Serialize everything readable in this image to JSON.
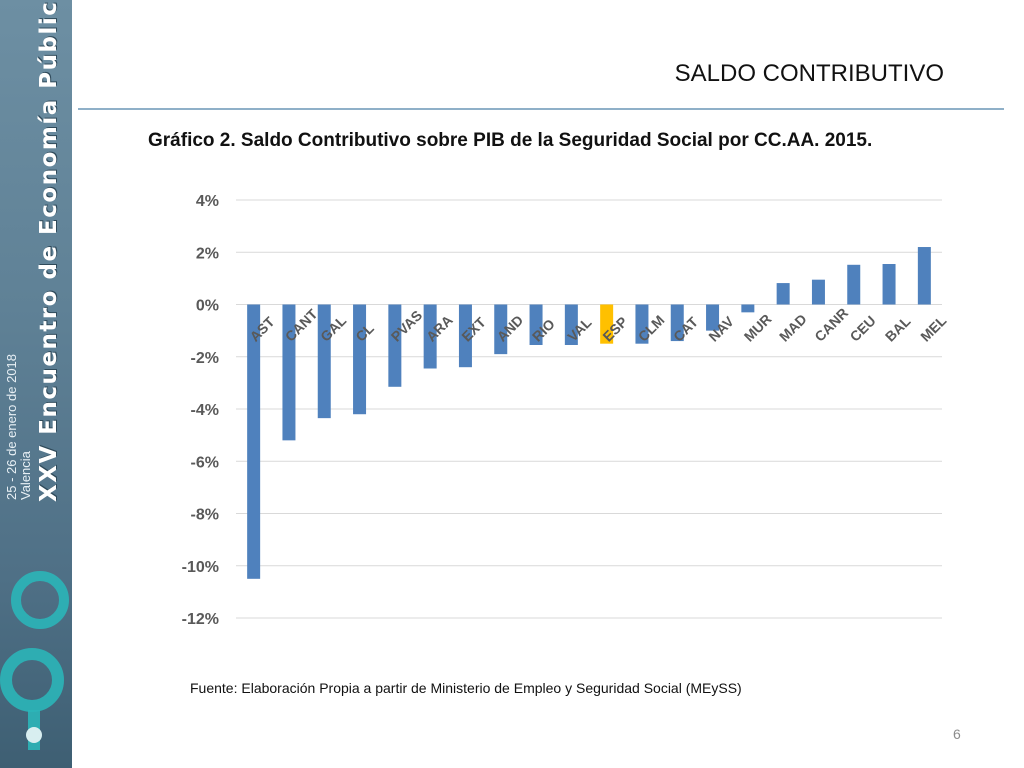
{
  "sidebar": {
    "event_title": "XXV Encuentro de Economía Pública",
    "event_dates": "25 - 26 de enero de 2018",
    "event_place": "Valencia",
    "logo_text": "iep",
    "colors": {
      "background": "#5f8196",
      "logo": "#2bb5b8"
    }
  },
  "slide": {
    "title": "SALDO CONTRIBUTIVO",
    "chart_title": "Gráfico 2. Saldo Contributivo sobre PIB de la Seguridad Social por CC.AA. 2015.",
    "source": "Fuente: Elaboración Propia a partir de Ministerio de Empleo y Seguridad Social (MEySS)",
    "page_number": "6"
  },
  "chart_data": {
    "type": "bar",
    "categories": [
      "AST",
      "CANT",
      "GAL",
      "CL",
      "PVAS",
      "ARA",
      "EXT",
      "AND",
      "RIO",
      "VAL",
      "ESP",
      "CLM",
      "CAT",
      "NAV",
      "MUR",
      "MAD",
      "CANR",
      "CEU",
      "BAL",
      "MEL"
    ],
    "values": [
      -10.5,
      -5.2,
      -4.35,
      -4.2,
      -3.15,
      -2.45,
      -2.4,
      -1.9,
      -1.55,
      -1.55,
      -1.5,
      -1.5,
      -1.4,
      -1.0,
      -0.3,
      0.82,
      0.95,
      1.52,
      1.55,
      2.2
    ],
    "highlight": "ESP",
    "colors": {
      "bar": "#4f81bd",
      "highlight": "#ffc000",
      "grid": "#d9d9d9",
      "label": "#595959"
    },
    "yticks": [
      "4%",
      "2%",
      "0%",
      "-2%",
      "-4%",
      "-6%",
      "-8%",
      "-10%",
      "-12%"
    ],
    "ylim": [
      -12,
      4
    ],
    "grid": true,
    "legend": "none"
  }
}
